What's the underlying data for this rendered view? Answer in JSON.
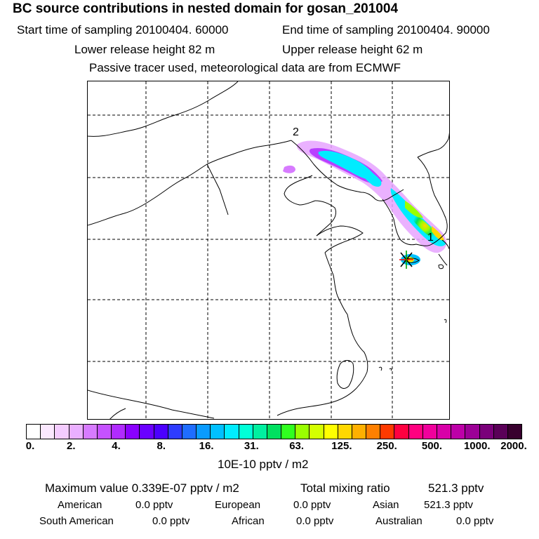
{
  "title": "BC  source contributions in nested domain for gosan_201004",
  "header": {
    "start_sampling": "Start time of sampling 20100404. 60000",
    "end_sampling": "End time of sampling 20100404. 90000",
    "lower_release": "Lower release height   82 m",
    "upper_release": "Upper release height   62 m",
    "tracer_info": "Passive tracer used, meteorological data are from ECMWF"
  },
  "map": {
    "labels": {
      "label_1": "1",
      "label_2": "2"
    }
  },
  "colorbar": {
    "colors": [
      "#ffffff",
      "#fbe8ff",
      "#f4ccff",
      "#eaafff",
      "#d77bff",
      "#c552ff",
      "#b02bff",
      "#8a00ff",
      "#6a00ff",
      "#4b00ff",
      "#2e3cff",
      "#1f6dff",
      "#0a9bff",
      "#00c0ff",
      "#00ecff",
      "#00ffd8",
      "#00f0a0",
      "#00e060",
      "#30ff20",
      "#9aff00",
      "#d4ff00",
      "#ffff00",
      "#ffd800",
      "#ffb000",
      "#ff8000",
      "#ff3a00",
      "#ff0040",
      "#ff0080",
      "#f0009c",
      "#d800a8",
      "#bd00a8",
      "#9c0096",
      "#7a007a",
      "#5a0058",
      "#38002e"
    ],
    "tick_labels": [
      "0.",
      "2.",
      "4.",
      "8.",
      "16.",
      "31.",
      "63.",
      "125.",
      "250.",
      "500.",
      "1000.",
      "2000."
    ],
    "units": "10E-10 pptv / m2"
  },
  "summary": {
    "max_value": "Maximum value  0.339E-07 pptv / m2",
    "total_mixing": "Total mixing ratio",
    "total_mixing_value": "521.3 pptv",
    "american_label": "American",
    "american_value": "0.0 pptv",
    "european_label": "European",
    "european_value": "0.0 pptv",
    "asian_label": "Asian",
    "asian_value": "521.3 pptv",
    "south_american_label": "South American",
    "south_american_value": "0.0 pptv",
    "african_label": "African",
    "african_value": "0.0 pptv",
    "australian_label": "Australian",
    "australian_value": "0.0 pptv"
  }
}
